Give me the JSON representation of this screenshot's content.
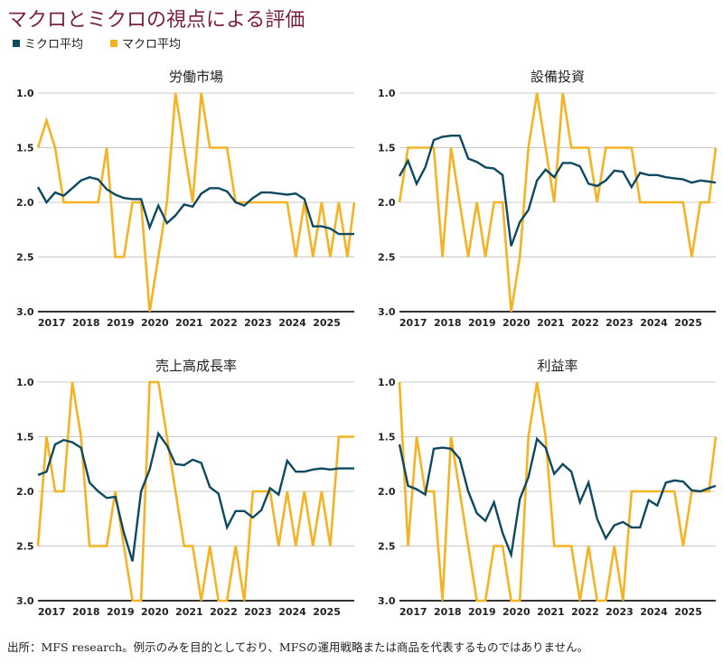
{
  "title": "マクロとミクロの視点による評価",
  "legend": [
    {
      "label": "ミクロ平均",
      "color": "#0d4a62"
    },
    {
      "label": "マクロ平均",
      "color": "#f5b324"
    }
  ],
  "footnote": "出所：MFS research。例示のみを目的としており、MFSの運用戦略または商品を代表するものではありません。",
  "chart_data": [
    {
      "type": "line",
      "title": "労働市場",
      "ylim": [
        3.0,
        1.0
      ],
      "y_inverted": true,
      "yticks": [
        "1.0",
        "1.5",
        "2.0",
        "2.5",
        "3.0"
      ],
      "xticks": [
        "2017",
        "2018",
        "2019",
        "2020",
        "2021",
        "2022",
        "2023",
        "2024",
        "2025"
      ],
      "x_range": [
        2016.6,
        2025.8
      ],
      "grid": "horizontal",
      "series": [
        {
          "name": "ミクロ平均",
          "color": "#0d4a62",
          "x": [
            2016.6,
            2016.85,
            2017.1,
            2017.35,
            2017.6,
            2017.85,
            2018.1,
            2018.35,
            2018.6,
            2018.85,
            2019.1,
            2019.35,
            2019.6,
            2019.85,
            2020.1,
            2020.35,
            2020.6,
            2020.85,
            2021.1,
            2021.35,
            2021.6,
            2021.85,
            2022.1,
            2022.35,
            2022.6,
            2022.85,
            2023.1,
            2023.35,
            2023.6,
            2023.85,
            2024.1,
            2024.35,
            2024.6,
            2024.85,
            2025.1,
            2025.35,
            2025.6,
            2025.8
          ],
          "y": [
            1.86,
            2.0,
            1.91,
            1.94,
            1.87,
            1.8,
            1.77,
            1.79,
            1.88,
            1.93,
            1.96,
            1.97,
            1.97,
            2.23,
            2.03,
            2.19,
            2.12,
            2.02,
            2.04,
            1.92,
            1.87,
            1.87,
            1.9,
            2.0,
            2.03,
            1.96,
            1.91,
            1.91,
            1.92,
            1.93,
            1.92,
            1.97,
            2.22,
            2.22,
            2.24,
            2.29,
            2.29,
            2.29
          ]
        },
        {
          "name": "マクロ平均",
          "color": "#f5b324",
          "x": [
            2016.6,
            2016.85,
            2017.1,
            2017.35,
            2017.6,
            2017.85,
            2018.1,
            2018.35,
            2018.6,
            2018.85,
            2019.1,
            2019.35,
            2019.6,
            2019.85,
            2020.1,
            2020.35,
            2020.6,
            2020.85,
            2021.1,
            2021.35,
            2021.6,
            2021.85,
            2022.1,
            2022.35,
            2022.6,
            2022.85,
            2023.1,
            2023.35,
            2023.6,
            2023.85,
            2024.1,
            2024.35,
            2024.6,
            2024.85,
            2025.1,
            2025.35,
            2025.6,
            2025.8
          ],
          "y": [
            1.5,
            1.25,
            1.5,
            2.0,
            2.0,
            2.0,
            2.0,
            2.0,
            1.5,
            2.5,
            2.5,
            2.0,
            2.0,
            3.0,
            2.5,
            2.0,
            1.0,
            1.5,
            2.0,
            1.0,
            1.5,
            1.5,
            1.5,
            2.0,
            2.0,
            2.0,
            2.0,
            2.0,
            2.0,
            2.0,
            2.5,
            2.0,
            2.5,
            2.0,
            2.5,
            2.0,
            2.5,
            2.0
          ]
        }
      ]
    },
    {
      "type": "line",
      "title": "設備投資",
      "ylim": [
        3.0,
        1.0
      ],
      "y_inverted": true,
      "yticks": [
        "1.0",
        "1.5",
        "2.0",
        "2.5",
        "3.0"
      ],
      "xticks": [
        "2017",
        "2018",
        "2019",
        "2020",
        "2021",
        "2022",
        "2023",
        "2024",
        "2025"
      ],
      "x_range": [
        2016.6,
        2025.8
      ],
      "grid": "horizontal",
      "series": [
        {
          "name": "ミクロ平均",
          "color": "#0d4a62",
          "x": [
            2016.6,
            2016.85,
            2017.1,
            2017.35,
            2017.6,
            2017.85,
            2018.1,
            2018.35,
            2018.6,
            2018.85,
            2019.1,
            2019.35,
            2019.6,
            2019.85,
            2020.1,
            2020.35,
            2020.6,
            2020.85,
            2021.1,
            2021.35,
            2021.6,
            2021.85,
            2022.1,
            2022.35,
            2022.6,
            2022.85,
            2023.1,
            2023.35,
            2023.6,
            2023.85,
            2024.1,
            2024.35,
            2024.6,
            2024.85,
            2025.1,
            2025.35,
            2025.6,
            2025.8
          ],
          "y": [
            1.76,
            1.62,
            1.83,
            1.68,
            1.43,
            1.4,
            1.39,
            1.39,
            1.6,
            1.63,
            1.68,
            1.69,
            1.75,
            2.4,
            2.18,
            2.07,
            1.8,
            1.7,
            1.77,
            1.64,
            1.64,
            1.67,
            1.83,
            1.85,
            1.8,
            1.71,
            1.72,
            1.86,
            1.73,
            1.75,
            1.75,
            1.77,
            1.78,
            1.79,
            1.82,
            1.8,
            1.81,
            1.82
          ]
        },
        {
          "name": "マクロ平均",
          "color": "#f5b324",
          "x": [
            2016.6,
            2016.85,
            2017.1,
            2017.35,
            2017.6,
            2017.85,
            2018.1,
            2018.35,
            2018.6,
            2018.85,
            2019.1,
            2019.35,
            2019.6,
            2019.85,
            2020.1,
            2020.35,
            2020.6,
            2020.85,
            2021.1,
            2021.35,
            2021.6,
            2021.85,
            2022.1,
            2022.35,
            2022.6,
            2022.85,
            2023.1,
            2023.35,
            2023.6,
            2023.85,
            2024.1,
            2024.35,
            2024.6,
            2024.85,
            2025.1,
            2025.35,
            2025.6,
            2025.8
          ],
          "y": [
            2.0,
            1.5,
            1.5,
            1.5,
            1.5,
            2.5,
            1.5,
            2.0,
            2.5,
            2.0,
            2.5,
            2.0,
            2.0,
            3.0,
            2.5,
            1.5,
            1.0,
            1.5,
            2.0,
            1.0,
            1.5,
            1.5,
            1.5,
            2.0,
            1.5,
            1.5,
            1.5,
            1.5,
            2.0,
            2.0,
            2.0,
            2.0,
            2.0,
            2.0,
            2.5,
            2.0,
            2.0,
            1.5
          ]
        }
      ]
    },
    {
      "type": "line",
      "title": "売上高成長率",
      "ylim": [
        3.0,
        1.0
      ],
      "y_inverted": true,
      "yticks": [
        "1.0",
        "1.5",
        "2.0",
        "2.5",
        "3.0"
      ],
      "xticks": [
        "2017",
        "2018",
        "2019",
        "2020",
        "2021",
        "2022",
        "2023",
        "2024",
        "2025"
      ],
      "x_range": [
        2016.6,
        2025.8
      ],
      "grid": "horizontal",
      "series": [
        {
          "name": "ミクロ平均",
          "color": "#0d4a62",
          "x": [
            2016.6,
            2016.85,
            2017.1,
            2017.35,
            2017.6,
            2017.85,
            2018.1,
            2018.35,
            2018.6,
            2018.85,
            2019.1,
            2019.35,
            2019.6,
            2019.85,
            2020.1,
            2020.35,
            2020.6,
            2020.85,
            2021.1,
            2021.35,
            2021.6,
            2021.85,
            2022.1,
            2022.35,
            2022.6,
            2022.85,
            2023.1,
            2023.35,
            2023.6,
            2023.85,
            2024.1,
            2024.35,
            2024.6,
            2024.85,
            2025.1,
            2025.35,
            2025.6,
            2025.8
          ],
          "y": [
            1.85,
            1.82,
            1.57,
            1.53,
            1.55,
            1.6,
            1.92,
            2.0,
            2.06,
            2.05,
            2.38,
            2.64,
            2.0,
            1.8,
            1.47,
            1.58,
            1.75,
            1.76,
            1.71,
            1.74,
            1.96,
            2.02,
            2.33,
            2.18,
            2.18,
            2.24,
            2.17,
            1.97,
            2.03,
            1.72,
            1.82,
            1.82,
            1.8,
            1.79,
            1.8,
            1.79,
            1.79,
            1.79
          ]
        },
        {
          "name": "マクロ平均",
          "color": "#f5b324",
          "x": [
            2016.6,
            2016.85,
            2017.1,
            2017.35,
            2017.6,
            2017.85,
            2018.1,
            2018.35,
            2018.6,
            2018.85,
            2019.1,
            2019.35,
            2019.6,
            2019.85,
            2020.1,
            2020.35,
            2020.6,
            2020.85,
            2021.1,
            2021.35,
            2021.6,
            2021.85,
            2022.1,
            2022.35,
            2022.6,
            2022.85,
            2023.1,
            2023.35,
            2023.6,
            2023.85,
            2024.1,
            2024.35,
            2024.6,
            2024.85,
            2025.1,
            2025.35,
            2025.6,
            2025.8
          ],
          "y": [
            2.5,
            1.5,
            2.0,
            2.0,
            1.0,
            1.5,
            2.5,
            2.5,
            2.5,
            2.0,
            2.5,
            3.0,
            3.0,
            1.0,
            1.0,
            1.5,
            2.0,
            2.5,
            2.5,
            3.0,
            2.5,
            3.0,
            3.0,
            2.5,
            3.0,
            2.0,
            2.0,
            2.0,
            2.5,
            2.0,
            2.5,
            2.0,
            2.5,
            2.0,
            2.5,
            1.5,
            1.5,
            1.5
          ]
        }
      ]
    },
    {
      "type": "line",
      "title": "利益率",
      "ylim": [
        3.0,
        1.0
      ],
      "y_inverted": true,
      "yticks": [
        "1.0",
        "1.5",
        "2.0",
        "2.5",
        "3.0"
      ],
      "xticks": [
        "2017",
        "2018",
        "2019",
        "2020",
        "2021",
        "2022",
        "2023",
        "2024",
        "2025"
      ],
      "x_range": [
        2016.6,
        2025.8
      ],
      "grid": "horizontal",
      "series": [
        {
          "name": "ミクロ平均",
          "color": "#0d4a62",
          "x": [
            2016.6,
            2016.85,
            2017.1,
            2017.35,
            2017.6,
            2017.85,
            2018.1,
            2018.35,
            2018.6,
            2018.85,
            2019.1,
            2019.35,
            2019.6,
            2019.85,
            2020.1,
            2020.35,
            2020.6,
            2020.85,
            2021.1,
            2021.35,
            2021.6,
            2021.85,
            2022.1,
            2022.35,
            2022.6,
            2022.85,
            2023.1,
            2023.35,
            2023.6,
            2023.85,
            2024.1,
            2024.35,
            2024.6,
            2024.85,
            2025.1,
            2025.35,
            2025.6,
            2025.8
          ],
          "y": [
            1.57,
            1.95,
            1.98,
            2.03,
            1.61,
            1.6,
            1.61,
            1.7,
            2.0,
            2.2,
            2.27,
            2.1,
            2.38,
            2.58,
            2.07,
            1.87,
            1.52,
            1.6,
            1.84,
            1.75,
            1.82,
            2.1,
            1.92,
            2.25,
            2.43,
            2.31,
            2.28,
            2.33,
            2.33,
            2.08,
            2.13,
            1.92,
            1.9,
            1.91,
            1.99,
            2.0,
            1.97,
            1.95
          ]
        },
        {
          "name": "マクロ平均",
          "color": "#f5b324",
          "x": [
            2016.6,
            2016.85,
            2017.1,
            2017.35,
            2017.6,
            2017.85,
            2018.1,
            2018.35,
            2018.6,
            2018.85,
            2019.1,
            2019.35,
            2019.6,
            2019.85,
            2020.1,
            2020.35,
            2020.6,
            2020.85,
            2021.1,
            2021.35,
            2021.6,
            2021.85,
            2022.1,
            2022.35,
            2022.6,
            2022.85,
            2023.1,
            2023.35,
            2023.6,
            2023.85,
            2024.1,
            2024.35,
            2024.6,
            2024.85,
            2025.1,
            2025.35,
            2025.6,
            2025.8
          ],
          "y": [
            1.0,
            2.5,
            1.5,
            2.0,
            2.0,
            3.0,
            1.5,
            2.0,
            2.5,
            3.0,
            3.0,
            2.5,
            2.5,
            3.0,
            3.0,
            1.5,
            1.0,
            1.5,
            2.5,
            2.5,
            2.5,
            3.0,
            2.5,
            3.0,
            3.0,
            2.5,
            3.0,
            2.0,
            2.0,
            2.0,
            2.0,
            2.0,
            2.0,
            2.5,
            2.0,
            2.0,
            2.0,
            1.5
          ]
        }
      ]
    }
  ]
}
